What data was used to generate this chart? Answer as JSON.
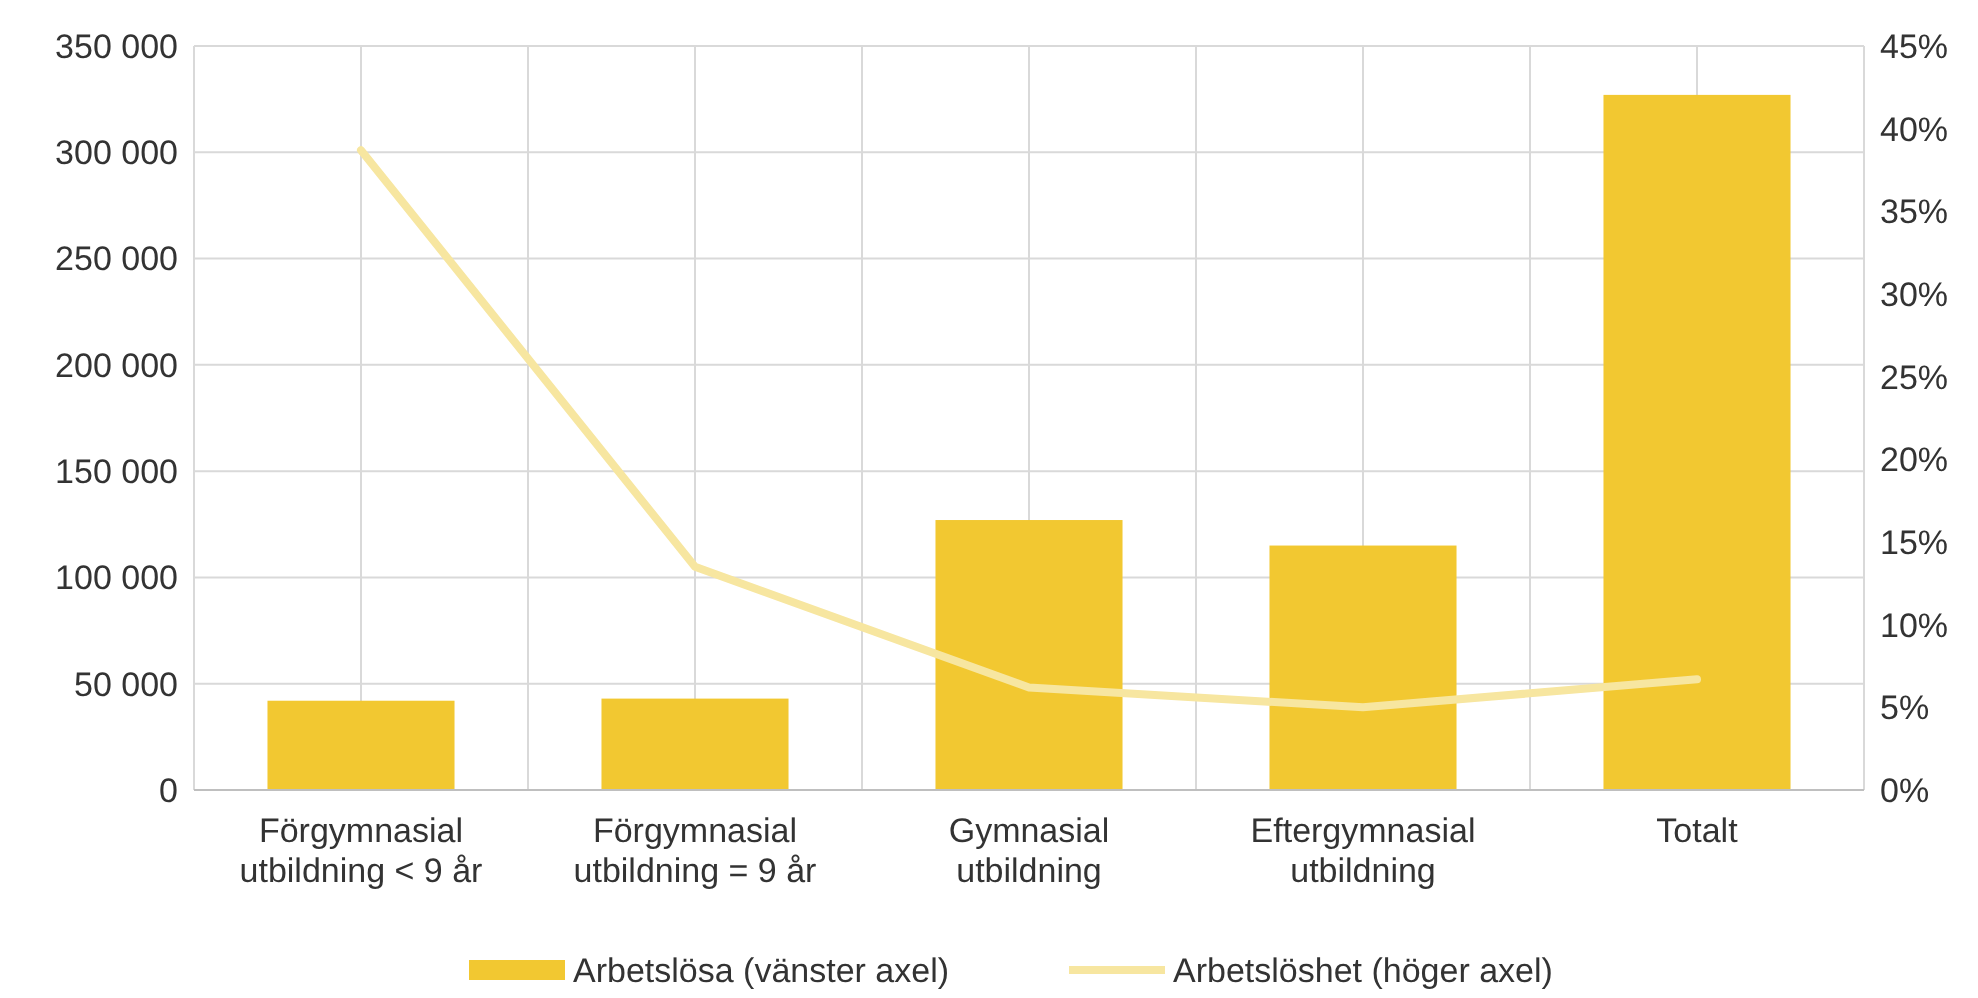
{
  "chart_data": {
    "type": "bar",
    "categories": [
      "Förgymnasial utbildning < 9 år",
      "Förgymnasial utbildning = 9 år",
      "Gymnasial utbildning",
      "Eftergymnasial utbildning",
      "Totalt"
    ],
    "series": [
      {
        "name": "Arbetslösa (vänster axel)",
        "type": "bar",
        "color": "#f2c831",
        "values": [
          42000,
          43000,
          127000,
          115000,
          327000
        ]
      },
      {
        "name": "Arbetslöshet (höger axel)",
        "type": "line",
        "axis": "y2",
        "color": "#f7e6a0",
        "values": [
          38.7,
          13.5,
          6.2,
          5.0,
          6.7
        ]
      }
    ],
    "ylim": [
      0,
      350000
    ],
    "yticks": [
      0,
      {
        "value": 50000,
        "label": "50 000"
      },
      {
        "value": 100000,
        "label": "100 000"
      },
      {
        "value": 150000,
        "label": "150 000"
      },
      {
        "value": 200000,
        "label": "200 000"
      },
      {
        "value": 250000,
        "label": "250 000"
      },
      {
        "value": 300000,
        "label": "300 000"
      },
      {
        "value": 350000,
        "label": "350 000"
      }
    ],
    "y2lim": [
      0,
      45
    ],
    "y2ticks": [
      {
        "value": 0,
        "label": "0%"
      },
      {
        "value": 5,
        "label": "5%"
      },
      {
        "value": 10,
        "label": "10%"
      },
      {
        "value": 15,
        "label": "15%"
      },
      {
        "value": 20,
        "label": "20%"
      },
      {
        "value": 25,
        "label": "25%"
      },
      {
        "value": 30,
        "label": "30%"
      },
      {
        "value": 35,
        "label": "35%"
      },
      {
        "value": 40,
        "label": "40%"
      },
      {
        "value": 45,
        "label": "45%"
      }
    ],
    "grid": true,
    "legend": "bottom",
    "marker": "none",
    "line_style": "solid"
  }
}
